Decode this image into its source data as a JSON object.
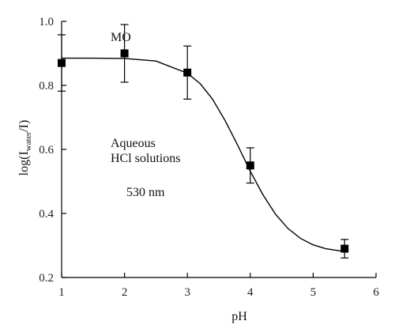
{
  "chart_data": {
    "type": "scatter",
    "xlabel": "pH",
    "ylabel_text": "log(I",
    "ylabel_subscript": "water",
    "ylabel_denominator": "/I)",
    "xlim": [
      1,
      6
    ],
    "ylim": [
      0.2,
      1.0
    ],
    "xticks": [
      1,
      2,
      3,
      4,
      5,
      6
    ],
    "yticks": [
      0.2,
      0.4,
      0.6,
      0.8,
      1.0
    ],
    "xtick_labels": [
      "1",
      "2",
      "3",
      "4",
      "5",
      "6"
    ],
    "ytick_labels": [
      "0.2",
      "0.4",
      "0.6",
      "0.8",
      "1.0"
    ],
    "annotations": [
      "MO",
      "Aqueous",
      "HCl solutions",
      "530 nm"
    ],
    "series": [
      {
        "points": [
          {
            "x": 1.0,
            "y": 0.87,
            "error": 0.088
          },
          {
            "x": 2.0,
            "y": 0.9,
            "error": 0.09
          },
          {
            "x": 3.0,
            "y": 0.84,
            "error": 0.083
          },
          {
            "x": 4.0,
            "y": 0.55,
            "error": 0.055
          },
          {
            "x": 5.5,
            "y": 0.29,
            "error": 0.029
          }
        ]
      }
    ],
    "fit_curve": {
      "type": "sigmoid",
      "x": [
        1.0,
        1.5,
        2.0,
        2.5,
        3.0,
        3.2,
        3.4,
        3.6,
        3.8,
        4.0,
        4.2,
        4.4,
        4.6,
        4.8,
        5.0,
        5.2,
        5.5
      ],
      "y": [
        0.885,
        0.885,
        0.884,
        0.876,
        0.838,
        0.806,
        0.757,
        0.69,
        0.613,
        0.532,
        0.459,
        0.398,
        0.353,
        0.322,
        0.302,
        0.29,
        0.281
      ]
    },
    "grid": false,
    "legend": "none"
  }
}
